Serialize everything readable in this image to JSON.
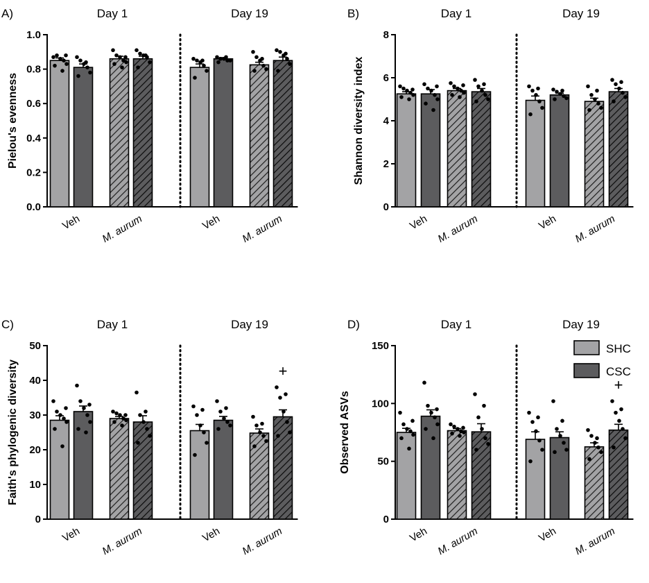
{
  "colors": {
    "shc": "#a3a3a5",
    "csc": "#5c5c5e",
    "axis": "#000000",
    "dot": "#000000"
  },
  "legend": {
    "items": [
      {
        "label": "SHC",
        "color": "#a3a3a5"
      },
      {
        "label": "CSC",
        "color": "#5c5c5e"
      }
    ]
  },
  "chart_data": [
    {
      "panel": "A)",
      "type": "bar",
      "ylabel": "Pielou's evenness",
      "ylim": [
        0,
        1.0
      ],
      "yticks": [
        "0.0",
        "0.2",
        "0.4",
        "0.6",
        "0.8",
        "1.0"
      ],
      "ytick_values": [
        0,
        0.2,
        0.4,
        0.6,
        0.8,
        1.0
      ],
      "days": [
        "Day 1",
        "Day 19"
      ],
      "categories": [
        "Veh",
        "M. aurum",
        "Veh",
        "M. aurum"
      ],
      "bars": [
        {
          "group": "SHC",
          "treatment": "Veh",
          "day": "Day 1",
          "hatched": false,
          "mean": 0.85,
          "sem": 0.015,
          "points": [
            0.87,
            0.88,
            0.86,
            0.85,
            0.83,
            0.82,
            0.79,
            0.88
          ]
        },
        {
          "group": "CSC",
          "treatment": "Veh",
          "day": "Day 1",
          "hatched": false,
          "mean": 0.81,
          "sem": 0.02,
          "points": [
            0.87,
            0.85,
            0.83,
            0.81,
            0.78,
            0.76,
            0.84
          ]
        },
        {
          "group": "SHC",
          "treatment": "M. aurum",
          "day": "Day 1",
          "hatched": true,
          "mean": 0.86,
          "sem": 0.015,
          "points": [
            0.91,
            0.88,
            0.87,
            0.85,
            0.84,
            0.83,
            0.81,
            0.87
          ]
        },
        {
          "group": "CSC",
          "treatment": "M. aurum",
          "day": "Day 1",
          "hatched": true,
          "mean": 0.86,
          "sem": 0.015,
          "points": [
            0.91,
            0.89,
            0.88,
            0.87,
            0.84,
            0.81,
            0.88
          ]
        },
        {
          "group": "SHC",
          "treatment": "Veh",
          "day": "Day 19",
          "hatched": false,
          "mean": 0.81,
          "sem": 0.02,
          "points": [
            0.86,
            0.85,
            0.84,
            0.82,
            0.79,
            0.75,
            0.85
          ]
        },
        {
          "group": "CSC",
          "treatment": "Veh",
          "day": "Day 19",
          "hatched": false,
          "mean": 0.86,
          "sem": 0.007,
          "points": [
            0.87,
            0.86,
            0.86,
            0.85,
            0.85,
            0.84,
            0.87
          ]
        },
        {
          "group": "SHC",
          "treatment": "M. aurum",
          "day": "Day 19",
          "hatched": true,
          "mean": 0.825,
          "sem": 0.015,
          "points": [
            0.9,
            0.87,
            0.85,
            0.82,
            0.8,
            0.79,
            0.86
          ]
        },
        {
          "group": "CSC",
          "treatment": "M. aurum",
          "day": "Day 19",
          "hatched": true,
          "mean": 0.85,
          "sem": 0.02,
          "points": [
            0.91,
            0.9,
            0.88,
            0.86,
            0.83,
            0.79,
            0.89
          ]
        }
      ],
      "annotations": []
    },
    {
      "panel": "B)",
      "type": "bar",
      "ylabel": "Shannon diversity index",
      "ylim": [
        0,
        8
      ],
      "yticks": [
        "0",
        "2",
        "4",
        "6",
        "8"
      ],
      "ytick_values": [
        0,
        2,
        4,
        6,
        8
      ],
      "days": [
        "Day 1",
        "Day 19"
      ],
      "categories": [
        "Veh",
        "M. aurum",
        "Veh",
        "M. aurum"
      ],
      "bars": [
        {
          "group": "SHC",
          "treatment": "Veh",
          "day": "Day 1",
          "hatched": false,
          "mean": 5.25,
          "sem": 0.1,
          "points": [
            5.6,
            5.5,
            5.4,
            5.3,
            5.2,
            5.1,
            5.0,
            5.45
          ]
        },
        {
          "group": "CSC",
          "treatment": "Veh",
          "day": "Day 1",
          "hatched": false,
          "mean": 5.25,
          "sem": 0.2,
          "points": [
            5.7,
            5.5,
            5.4,
            5.2,
            5.0,
            4.8,
            4.5,
            5.6
          ]
        },
        {
          "group": "SHC",
          "treatment": "M. aurum",
          "day": "Day 1",
          "hatched": true,
          "mean": 5.4,
          "sem": 0.1,
          "points": [
            5.75,
            5.6,
            5.5,
            5.4,
            5.3,
            5.2,
            5.1,
            5.65
          ]
        },
        {
          "group": "CSC",
          "treatment": "M. aurum",
          "day": "Day 1",
          "hatched": true,
          "mean": 5.35,
          "sem": 0.15,
          "points": [
            5.9,
            5.6,
            5.4,
            5.2,
            5.0,
            4.9,
            5.7
          ]
        },
        {
          "group": "SHC",
          "treatment": "Veh",
          "day": "Day 19",
          "hatched": false,
          "mean": 4.95,
          "sem": 0.2,
          "points": [
            5.6,
            5.4,
            5.2,
            4.9,
            4.6,
            4.3,
            5.5
          ]
        },
        {
          "group": "CSC",
          "treatment": "Veh",
          "day": "Day 19",
          "hatched": false,
          "mean": 5.2,
          "sem": 0.08,
          "points": [
            5.45,
            5.35,
            5.25,
            5.15,
            5.05,
            5.0,
            5.4
          ]
        },
        {
          "group": "SHC",
          "treatment": "M. aurum",
          "day": "Day 19",
          "hatched": true,
          "mean": 4.9,
          "sem": 0.15,
          "points": [
            5.6,
            5.2,
            5.0,
            4.8,
            4.6,
            4.5,
            5.4
          ]
        },
        {
          "group": "CSC",
          "treatment": "M. aurum",
          "day": "Day 19",
          "hatched": true,
          "mean": 5.35,
          "sem": 0.15,
          "points": [
            5.9,
            5.7,
            5.5,
            5.3,
            5.1,
            4.9,
            5.8
          ]
        }
      ],
      "annotations": []
    },
    {
      "panel": "C)",
      "type": "bar",
      "ylabel": "Faith's phylogenic diversity",
      "ylim": [
        0,
        50
      ],
      "yticks": [
        "0",
        "10",
        "20",
        "30",
        "40",
        "50"
      ],
      "ytick_values": [
        0,
        10,
        20,
        30,
        40,
        50
      ],
      "days": [
        "Day 1",
        "Day 19"
      ],
      "categories": [
        "Veh",
        "M. aurum",
        "Veh",
        "M. aurum"
      ],
      "bars": [
        {
          "group": "SHC",
          "treatment": "Veh",
          "day": "Day 1",
          "hatched": false,
          "mean": 28.5,
          "sem": 1.3,
          "points": [
            34,
            31,
            30,
            29,
            28,
            26,
            21,
            32
          ]
        },
        {
          "group": "CSC",
          "treatment": "Veh",
          "day": "Day 1",
          "hatched": false,
          "mean": 31,
          "sem": 1.6,
          "points": [
            38.5,
            34,
            32,
            30,
            28,
            26,
            25,
            33
          ]
        },
        {
          "group": "SHC",
          "treatment": "M. aurum",
          "day": "Day 1",
          "hatched": true,
          "mean": 29,
          "sem": 0.6,
          "points": [
            31,
            30.5,
            30,
            29,
            28.5,
            28,
            27,
            30
          ]
        },
        {
          "group": "CSC",
          "treatment": "M. aurum",
          "day": "Day 1",
          "hatched": true,
          "mean": 28,
          "sem": 1.8,
          "points": [
            36.5,
            30,
            28,
            26,
            24,
            22,
            31
          ]
        },
        {
          "group": "SHC",
          "treatment": "Veh",
          "day": "Day 19",
          "hatched": false,
          "mean": 25.5,
          "sem": 1.8,
          "points": [
            32.5,
            30,
            27,
            25,
            22,
            18.5,
            31.5
          ]
        },
        {
          "group": "CSC",
          "treatment": "Veh",
          "day": "Day 19",
          "hatched": false,
          "mean": 28.5,
          "sem": 1.1,
          "points": [
            34,
            31,
            29,
            28,
            27,
            26,
            32
          ]
        },
        {
          "group": "SHC",
          "treatment": "M. aurum",
          "day": "Day 19",
          "hatched": true,
          "mean": 24.8,
          "sem": 1.2,
          "points": [
            29.5,
            27,
            25,
            24,
            22.5,
            21,
            27.5
          ]
        },
        {
          "group": "CSC",
          "treatment": "M. aurum",
          "day": "Day 19",
          "hatched": true,
          "mean": 29.5,
          "sem": 2.0,
          "points": [
            38,
            35,
            31,
            28,
            25,
            24,
            36
          ]
        }
      ],
      "annotations": [
        {
          "text": "+",
          "bar_index": 7
        }
      ]
    },
    {
      "panel": "D)",
      "type": "bar",
      "ylabel": "Observed ASVs",
      "ylim": [
        0,
        150
      ],
      "yticks": [
        "0",
        "50",
        "100",
        "150"
      ],
      "ytick_values": [
        0,
        50,
        100,
        150
      ],
      "days": [
        "Day 1",
        "Day 19"
      ],
      "categories": [
        "Veh",
        "M. aurum",
        "Veh",
        "M. aurum"
      ],
      "bars": [
        {
          "group": "SHC",
          "treatment": "Veh",
          "day": "Day 1",
          "hatched": false,
          "mean": 75,
          "sem": 3.5,
          "points": [
            92,
            82,
            78,
            76,
            73,
            70,
            61,
            85
          ]
        },
        {
          "group": "CSC",
          "treatment": "Veh",
          "day": "Day 1",
          "hatched": false,
          "mean": 89,
          "sem": 5.5,
          "points": [
            118,
            98,
            92,
            88,
            82,
            78,
            70,
            95
          ]
        },
        {
          "group": "SHC",
          "treatment": "M. aurum",
          "day": "Day 1",
          "hatched": true,
          "mean": 76.5,
          "sem": 1.8,
          "points": [
            82,
            80,
            78,
            76,
            75,
            74,
            72,
            79
          ]
        },
        {
          "group": "CSC",
          "treatment": "M. aurum",
          "day": "Day 1",
          "hatched": true,
          "mean": 75.5,
          "sem": 7.0,
          "points": [
            108,
            88,
            78,
            70,
            65,
            60,
            98
          ]
        },
        {
          "group": "SHC",
          "treatment": "Veh",
          "day": "Day 19",
          "hatched": false,
          "mean": 69,
          "sem": 6.5,
          "points": [
            92,
            84,
            76,
            68,
            60,
            50,
            88
          ]
        },
        {
          "group": "CSC",
          "treatment": "Veh",
          "day": "Day 19",
          "hatched": false,
          "mean": 70.5,
          "sem": 5.0,
          "points": [
            102,
            78,
            72,
            66,
            60,
            58,
            85
          ]
        },
        {
          "group": "SHC",
          "treatment": "M. aurum",
          "day": "Day 19",
          "hatched": true,
          "mean": 62.5,
          "sem": 3.5,
          "points": [
            77,
            72,
            66,
            62,
            58,
            52,
            70
          ]
        },
        {
          "group": "CSC",
          "treatment": "M. aurum",
          "day": "Day 19",
          "hatched": true,
          "mean": 77,
          "sem": 5.0,
          "points": [
            102,
            92,
            85,
            78,
            70,
            62,
            95
          ]
        }
      ],
      "annotations": [
        {
          "text": "+",
          "bar_index": 7
        }
      ]
    }
  ]
}
